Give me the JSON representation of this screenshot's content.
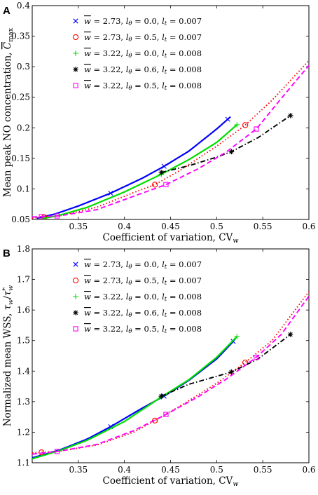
{
  "chart_data": [
    {
      "type": "line",
      "panel": "A",
      "xlabel": "Coefficient of variation, CV_w",
      "ylabel": "Mean peak NO concentration, C̄_max",
      "xlim": [
        0.3,
        0.6
      ],
      "ylim": [
        0.05,
        0.4
      ],
      "xticks": [
        "0.35",
        "0.4",
        "0.45",
        "0.5",
        "0.55",
        "0.6"
      ],
      "yticks": [
        "0.05",
        "0.1",
        "0.15",
        "0.2",
        "0.25",
        "0.3",
        "0.35",
        "0.4"
      ],
      "grid": false,
      "legend_position": "top-left",
      "series": [
        {
          "name": "w̄ = 2.73, lθ = 0.0, lt = 0.007",
          "color": "#0000ff",
          "line": "solid",
          "marker": "x",
          "x": [
            0.305,
            0.325,
            0.35,
            0.385,
            0.42,
            0.443,
            0.47,
            0.5,
            0.515
          ],
          "y": [
            0.052,
            0.059,
            0.072,
            0.093,
            0.118,
            0.137,
            0.162,
            0.198,
            0.218
          ],
          "marker_x": [
            0.385,
            0.443,
            0.512
          ]
        },
        {
          "name": "w̄ = 2.73, lθ = 0.5, lt = 0.007",
          "color": "#ff0000",
          "line": "dotted",
          "marker": "o",
          "x": [
            0.3,
            0.33,
            0.37,
            0.41,
            0.433,
            0.46,
            0.5,
            0.53,
            0.56,
            0.6
          ],
          "y": [
            0.052,
            0.056,
            0.07,
            0.094,
            0.107,
            0.13,
            0.17,
            0.203,
            0.245,
            0.31
          ],
          "marker_x": [
            0.313,
            0.433,
            0.531
          ]
        },
        {
          "name": "w̄ = 3.22, lθ = 0.0, lt = 0.008",
          "color": "#00dd00",
          "line": "solid",
          "marker": "+",
          "x": [
            0.307,
            0.33,
            0.36,
            0.4,
            0.44,
            0.47,
            0.5,
            0.522
          ],
          "y": [
            0.05,
            0.057,
            0.07,
            0.095,
            0.124,
            0.148,
            0.176,
            0.205
          ],
          "marker_x": [
            0.44,
            0.522
          ]
        },
        {
          "name": "w̄ = 3.22, lθ = 0.6, lt = 0.008",
          "color": "#000000",
          "line": "dashdot",
          "marker": "*",
          "x": [
            0.44,
            0.47,
            0.5,
            0.516,
            0.545,
            0.58
          ],
          "y": [
            0.127,
            0.138,
            0.152,
            0.161,
            0.184,
            0.22
          ],
          "marker_x": [
            0.44,
            0.516,
            0.58
          ]
        },
        {
          "name": "w̄ = 3.22, lθ = 0.5, lt = 0.008",
          "color": "#ff00ff",
          "line": "dashed",
          "marker": "s",
          "x": [
            0.3,
            0.33,
            0.37,
            0.41,
            0.445,
            0.48,
            0.51,
            0.543,
            0.57,
            0.6
          ],
          "y": [
            0.054,
            0.056,
            0.066,
            0.088,
            0.107,
            0.133,
            0.16,
            0.198,
            0.248,
            0.302
          ],
          "marker_x": [
            0.31,
            0.327,
            0.445,
            0.543
          ]
        }
      ]
    },
    {
      "type": "line",
      "panel": "B",
      "xlabel": "Coefficient of variation, CV_w",
      "ylabel": "Normalized mean WSS, τ_w/τ*_w",
      "xlim": [
        0.3,
        0.6
      ],
      "ylim": [
        1.1,
        1.8
      ],
      "xticks": [
        "0.35",
        "0.4",
        "0.45",
        "0.5",
        "0.55",
        "0.6"
      ],
      "yticks": [
        "1.1",
        "1.2",
        "1.3",
        "1.4",
        "1.5",
        "1.6",
        "1.7",
        "1.8"
      ],
      "grid": false,
      "legend_position": "top-left",
      "series": [
        {
          "name": "w̄ = 2.73, lθ = 0.0, lt = 0.007",
          "color": "#0000ff",
          "line": "solid",
          "marker": "x",
          "x": [
            0.3,
            0.33,
            0.36,
            0.385,
            0.42,
            0.443,
            0.47,
            0.5,
            0.518
          ],
          "y": [
            1.116,
            1.142,
            1.178,
            1.218,
            1.28,
            1.318,
            1.37,
            1.44,
            1.497
          ],
          "marker_x": [
            0.385,
            0.443,
            0.518
          ]
        },
        {
          "name": "w̄ = 2.73, lθ = 0.5, lt = 0.007",
          "color": "#ff0000",
          "line": "dotted",
          "marker": "o",
          "x": [
            0.3,
            0.33,
            0.37,
            0.41,
            0.433,
            0.46,
            0.5,
            0.531,
            0.56,
            0.6
          ],
          "y": [
            1.132,
            1.138,
            1.158,
            1.2,
            1.238,
            1.285,
            1.36,
            1.428,
            1.5,
            1.66
          ],
          "marker_x": [
            0.31,
            0.433,
            0.531
          ]
        },
        {
          "name": "w̄ = 3.22, lθ = 0.0, lt = 0.008",
          "color": "#00dd00",
          "line": "solid",
          "marker": "+",
          "x": [
            0.3,
            0.33,
            0.36,
            0.4,
            0.44,
            0.47,
            0.5,
            0.522
          ],
          "y": [
            1.113,
            1.14,
            1.174,
            1.235,
            1.315,
            1.372,
            1.445,
            1.513
          ],
          "marker_x": [
            0.44,
            0.522
          ]
        },
        {
          "name": "w̄ = 3.22, lθ = 0.6, lt = 0.008",
          "color": "#000000",
          "line": "dashdot",
          "marker": "*",
          "x": [
            0.44,
            0.47,
            0.5,
            0.516,
            0.545,
            0.58
          ],
          "y": [
            1.318,
            1.357,
            1.383,
            1.397,
            1.44,
            1.52
          ],
          "marker_x": [
            0.44,
            0.516,
            0.58
          ]
        },
        {
          "name": "w̄ = 3.22, lθ = 0.5, lt = 0.008",
          "color": "#ff00ff",
          "line": "dashed",
          "marker": "s",
          "x": [
            0.3,
            0.33,
            0.37,
            0.41,
            0.445,
            0.48,
            0.51,
            0.543,
            0.57,
            0.6
          ],
          "y": [
            1.128,
            1.138,
            1.16,
            1.205,
            1.258,
            1.316,
            1.373,
            1.445,
            1.52,
            1.645
          ],
          "marker_x": [
            0.327,
            0.445,
            0.543
          ]
        }
      ]
    }
  ]
}
